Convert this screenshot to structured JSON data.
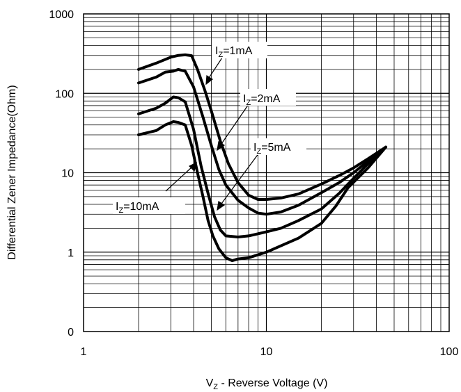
{
  "chart_data": {
    "type": "line",
    "xscale": "log",
    "yscale": "log",
    "xlim": [
      1,
      100
    ],
    "ylim": [
      0.1,
      1000
    ],
    "xticks": [
      {
        "value": 1,
        "label": "1"
      },
      {
        "value": 10,
        "label": "10"
      },
      {
        "value": 100,
        "label": "100"
      }
    ],
    "yticks": [
      {
        "value": 0.1,
        "label": "0"
      },
      {
        "value": 1,
        "label": "1"
      },
      {
        "value": 10,
        "label": "10"
      },
      {
        "value": 100,
        "label": "100"
      },
      {
        "value": 1000,
        "label": "1000"
      }
    ],
    "xlabel": {
      "main": "V",
      "sub": "Z",
      "rest": " - Reverse Voltage (V)"
    },
    "ylabel": "Differential Zener Impedance(Ohm)",
    "grid": true,
    "line_color": "#000000",
    "series": [
      {
        "name": "IZ=1mA",
        "label_main": "I",
        "label_sub": "Z",
        "label_rest": "=1mA",
        "x": [
          2,
          2.5,
          3,
          3.3,
          3.6,
          3.9,
          4.2,
          4.6,
          5,
          5.6,
          6.2,
          7,
          8,
          9,
          10,
          12,
          15,
          20,
          25,
          30,
          36,
          45
        ],
        "y": [
          200,
          240,
          285,
          300,
          305,
          298,
          200,
          110,
          60,
          25,
          13,
          7.5,
          5.2,
          4.6,
          4.6,
          4.8,
          5.4,
          7.2,
          9.2,
          11.5,
          15,
          21
        ]
      },
      {
        "name": "IZ=2mA",
        "label_main": "I",
        "label_sub": "Z",
        "label_rest": "=2mA",
        "x": [
          2,
          2.5,
          2.8,
          3.1,
          3.3,
          3.6,
          4,
          4.5,
          5,
          5.5,
          6,
          7,
          8,
          9,
          10,
          12,
          15,
          20,
          25,
          30,
          36,
          45
        ],
        "y": [
          135,
          160,
          185,
          190,
          200,
          190,
          120,
          50,
          22,
          11,
          7,
          4.5,
          3.6,
          3.1,
          3.0,
          3.2,
          3.9,
          5.6,
          7.5,
          10,
          14,
          21
        ]
      },
      {
        "name": "IZ=5mA",
        "label_main": "I",
        "label_sub": "Z",
        "label_rest": "=5mA",
        "x": [
          2,
          2.5,
          2.8,
          3.1,
          3.3,
          3.6,
          4,
          4.4,
          4.8,
          5.2,
          5.6,
          6,
          7,
          8,
          10,
          12,
          15,
          20,
          25,
          30,
          36,
          45
        ],
        "y": [
          55,
          65,
          75,
          90,
          88,
          78,
          35,
          12,
          5.5,
          2.8,
          1.9,
          1.6,
          1.55,
          1.6,
          1.8,
          2.0,
          2.5,
          3.5,
          5.5,
          8.5,
          13,
          21
        ]
      },
      {
        "name": "IZ=10mA",
        "label_main": "I",
        "label_sub": "Z",
        "label_rest": "=10mA",
        "x": [
          2,
          2.5,
          2.8,
          3.1,
          3.3,
          3.6,
          3.9,
          4.2,
          4.5,
          4.8,
          5.1,
          5.5,
          6,
          6.5,
          7,
          8,
          10,
          12,
          15,
          20,
          24,
          28,
          36,
          45
        ],
        "y": [
          30,
          34,
          40,
          44,
          43,
          40,
          22,
          10,
          5,
          2.5,
          1.6,
          1.1,
          0.85,
          0.78,
          0.82,
          0.85,
          1.0,
          1.2,
          1.5,
          2.3,
          3.8,
          6.5,
          11.5,
          21
        ]
      }
    ]
  }
}
